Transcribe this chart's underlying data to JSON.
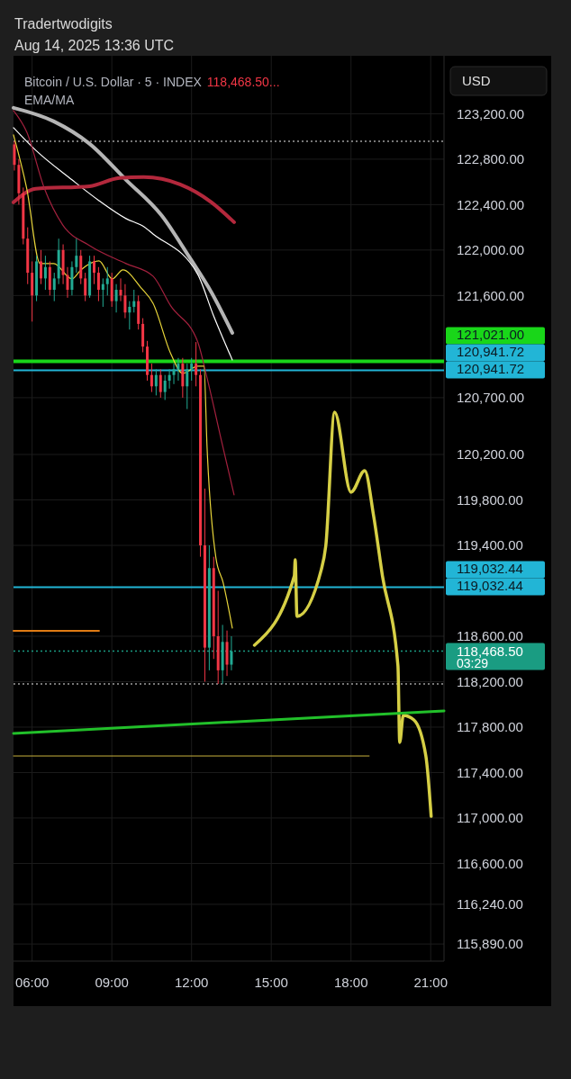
{
  "chart_data": {
    "type": "candlestick",
    "title": "Bitcoin / U.S. Dollar · 5 · INDEX",
    "subtitle": "EMA/MA",
    "annotations": [
      "Tradertwodigits",
      "Aug 14, 2025 13:36 UTC",
      "118,468.50...",
      "USD",
      "03:29",
      "120,941.72",
      "119,032.44"
    ],
    "x": [
      "2025-08-14T05:20",
      "2025-08-14T05:30",
      "2025-08-14T05:40",
      "2025-08-14T05:50",
      "2025-08-14T06:00",
      "2025-08-14T06:10",
      "2025-08-14T06:20",
      "2025-08-14T06:30",
      "2025-08-14T06:40",
      "2025-08-14T06:50",
      "2025-08-14T07:00",
      "2025-08-14T07:10",
      "2025-08-14T07:20",
      "2025-08-14T07:30",
      "2025-08-14T07:40",
      "2025-08-14T07:50",
      "2025-08-14T08:00",
      "2025-08-14T08:10",
      "2025-08-14T08:20",
      "2025-08-14T08:30",
      "2025-08-14T08:40",
      "2025-08-14T08:50",
      "2025-08-14T09:00",
      "2025-08-14T09:10",
      "2025-08-14T09:20",
      "2025-08-14T09:30",
      "2025-08-14T09:40",
      "2025-08-14T09:50",
      "2025-08-14T10:00",
      "2025-08-14T10:10",
      "2025-08-14T10:20",
      "2025-08-14T10:30",
      "2025-08-14T10:40",
      "2025-08-14T10:50",
      "2025-08-14T11:00",
      "2025-08-14T11:10",
      "2025-08-14T11:20",
      "2025-08-14T11:30",
      "2025-08-14T11:40",
      "2025-08-14T11:50",
      "2025-08-14T12:00",
      "2025-08-14T12:10",
      "2025-08-14T12:20",
      "2025-08-14T12:30",
      "2025-08-14T12:40",
      "2025-08-14T12:50",
      "2025-08-14T13:00",
      "2025-08-14T13:10",
      "2025-08-14T13:20",
      "2025-08-14T13:30"
    ],
    "ohlc": [
      [
        122930,
        122958,
        122700,
        122750
      ],
      [
        122750,
        122800,
        122400,
        122500
      ],
      [
        122500,
        122550,
        122050,
        122100
      ],
      [
        122100,
        122200,
        121700,
        121800
      ],
      [
        121800,
        121900,
        121370,
        121600
      ],
      [
        121600,
        121950,
        121550,
        121900
      ],
      [
        121900,
        122000,
        121700,
        121750
      ],
      [
        121750,
        121950,
        121650,
        121850
      ],
      [
        121850,
        121900,
        121600,
        121650
      ],
      [
        121650,
        121800,
        121550,
        121750
      ],
      [
        121750,
        122100,
        121700,
        122000
      ],
      [
        122000,
        122050,
        121700,
        121780
      ],
      [
        121780,
        121850,
        121580,
        121650
      ],
      [
        121650,
        121900,
        121600,
        121850
      ],
      [
        121850,
        122100,
        121800,
        121950
      ],
      [
        121950,
        122000,
        121700,
        121750
      ],
      [
        121750,
        121800,
        121550,
        121600
      ],
      [
        121600,
        121950,
        121580,
        121900
      ],
      [
        121900,
        121950,
        121700,
        121800
      ],
      [
        121800,
        121850,
        121550,
        121650
      ],
      [
        121650,
        121750,
        121500,
        121700
      ],
      [
        121700,
        121850,
        121600,
        121750
      ],
      [
        121750,
        121800,
        121500,
        121550
      ],
      [
        121550,
        121700,
        121450,
        121650
      ],
      [
        121650,
        121750,
        121550,
        121600
      ],
      [
        121600,
        121700,
        121400,
        121450
      ],
      [
        121450,
        121550,
        121300,
        121500
      ],
      [
        121500,
        121650,
        121450,
        121550
      ],
      [
        121550,
        121600,
        121300,
        121350
      ],
      [
        121350,
        121400,
        121100,
        121150
      ],
      [
        121150,
        121200,
        120850,
        120900
      ],
      [
        120900,
        121000,
        120750,
        120800
      ],
      [
        120800,
        120950,
        120720,
        120900
      ],
      [
        120900,
        120950,
        120700,
        120750
      ],
      [
        120750,
        120900,
        120680,
        120850
      ],
      [
        120850,
        120950,
        120780,
        120900
      ],
      [
        120900,
        121000,
        120820,
        120950
      ],
      [
        120950,
        121050,
        120850,
        121000
      ],
      [
        121000,
        121050,
        120700,
        120800
      ],
      [
        120800,
        121000,
        120600,
        120950
      ],
      [
        120950,
        121050,
        120850,
        121000
      ],
      [
        121000,
        121190,
        120800,
        120900
      ],
      [
        120900,
        120950,
        119300,
        119400
      ],
      [
        119400,
        119900,
        118200,
        118500
      ],
      [
        118500,
        119400,
        118300,
        119200
      ],
      [
        119200,
        119300,
        118400,
        118600
      ],
      [
        118600,
        119000,
        118180,
        118300
      ],
      [
        118300,
        118700,
        118180,
        118550
      ],
      [
        118550,
        118650,
        118250,
        118350
      ],
      [
        118350,
        118600,
        118300,
        118468.5
      ]
    ],
    "series": [
      {
        "type": "line",
        "color": "#b5b5b5",
        "x": [
          "2025-08-14T05:18",
          "2025-08-14T06:49",
          "2025-08-14T08:10",
          "2025-08-14T09:32",
          "2025-08-14T10:53",
          "2025-08-14T11:54",
          "2025-08-14T12:45",
          "2025-08-14T13:32"
        ],
        "values": [
          123252,
          123133,
          122935,
          122618,
          122301,
          121944,
          121627,
          121271
        ]
      },
      {
        "type": "line",
        "color": "#ffffff",
        "x": [
          "2025-08-14T05:18",
          "2025-08-14T06:08",
          "2025-08-14T07:30",
          "2025-08-14T08:31",
          "2025-08-14T09:32",
          "2025-08-14T10:12",
          "2025-08-14T10:33",
          "2025-08-14T12:14",
          "2025-08-14T12:49",
          "2025-08-14T13:32"
        ],
        "values": [
          123077,
          122879,
          122618,
          122435,
          122277,
          122206,
          122142,
          121786,
          121429,
          121033
        ]
      },
      {
        "type": "line",
        "color": "#b3283c",
        "x": [
          "2025-08-14T05:18",
          "2025-08-14T06:08",
          "2025-08-14T08:10",
          "2025-08-14T09:17",
          "2025-08-14T10:12",
          "2025-08-14T11:34",
          "2025-08-14T12:45",
          "2025-08-14T13:36"
        ],
        "values": [
          122420,
          122539,
          122562,
          122634,
          122642,
          122578,
          122420,
          122245
        ]
      },
      {
        "type": "line",
        "color": "#a3213e",
        "x": [
          "2025-08-14T05:18",
          "2025-08-14T05:48",
          "2025-08-14T06:28",
          "2025-08-14T07:09",
          "2025-08-14T08:10",
          "2025-08-14T09:32",
          "2025-08-14T10:33",
          "2025-08-14T11:13",
          "2025-08-14T12:14",
          "2025-08-14T12:35",
          "2025-08-14T13:09",
          "2025-08-14T13:36"
        ],
        "values": [
          123228,
          123038,
          122539,
          122222,
          122039,
          121881,
          121770,
          121508,
          121191,
          120874,
          120296,
          119844
        ]
      },
      {
        "type": "line",
        "color": "#e8d53a",
        "x": [
          "2025-08-14T05:18",
          "2025-08-14T05:48",
          "2025-08-14T06:18",
          "2025-08-14T06:49",
          "2025-08-14T07:30",
          "2025-08-14T07:50",
          "2025-08-14T08:31",
          "2025-08-14T09:01",
          "2025-08-14T09:25",
          "2025-08-14T10:06",
          "2025-08-14T10:33",
          "2025-08-14T11:13",
          "2025-08-14T11:40",
          "2025-08-14T12:14",
          "2025-08-14T12:28",
          "2025-08-14T12:35",
          "2025-08-14T12:55",
          "2025-08-14T13:11",
          "2025-08-14T13:32"
        ],
        "values": [
          123014,
          122539,
          121881,
          121881,
          121746,
          121825,
          121905,
          121746,
          121825,
          121667,
          121532,
          121088,
          120914,
          120977,
          120977,
          120264,
          119290,
          119076,
          118672
        ]
      },
      {
        "type": "line",
        "color": "#d6cf45",
        "x": [
          "2025-08-14T14:22",
          "2025-08-14T15:52",
          "2025-08-14T15:54",
          "2025-08-14T15:58",
          "2025-08-14T16:53",
          "2025-08-14T17:03",
          "2025-08-14T17:23",
          "2025-08-14T18:00",
          "2025-08-14T18:31",
          "2025-08-14T18:51",
          "2025-08-14T19:11",
          "2025-08-14T19:46",
          "2025-08-14T19:50",
          "2025-08-14T19:58",
          "2025-08-14T20:22",
          "2025-08-14T20:49",
          "2025-08-14T21:01"
        ],
        "values": [
          118521,
          119131,
          119274,
          118775,
          119187,
          119393,
          120573,
          119868,
          120058,
          119662,
          119131,
          118339,
          117665,
          117903,
          117863,
          117546,
          117015
        ]
      },
      {
        "type": "line",
        "color": "#22c02a",
        "x": [
          "2025-08-14T05:18",
          "2025-08-14T21:30"
        ],
        "values": [
          117745,
          117943
        ]
      },
      {
        "type": "line",
        "color": "#e07b14",
        "x": [
          "2025-08-14T05:18",
          "2025-08-14T08:31"
        ],
        "values": [
          118648,
          118648
        ]
      },
      {
        "type": "line",
        "color": "#c9b23c",
        "x": [
          "2025-08-14T05:18",
          "2025-08-14T18:41"
        ],
        "values": [
          117546,
          117546
        ]
      }
    ],
    "ref_lines": [
      {
        "axis": "y",
        "value": 121021,
        "label": "121,021.00",
        "color": "#19d619",
        "line_style": "solid"
      },
      {
        "axis": "y",
        "value": 120941.72,
        "label": "120,941.72",
        "color": "#22b5d6",
        "line_style": "solid"
      },
      {
        "axis": "y",
        "value": 119032.44,
        "label": "119,032.44",
        "color": "#22b5d6",
        "line_style": "solid"
      },
      {
        "axis": "y",
        "value": 118468.5,
        "label": "118,468.50",
        "color": "#1a9c82",
        "line_style": "dotted"
      },
      {
        "axis": "y",
        "value": 122958,
        "label": null,
        "color": "#9e9e9e",
        "line_style": "dotted"
      },
      {
        "axis": "y",
        "value": 118180,
        "label": null,
        "color": "#9e9e9e",
        "line_style": "dotted"
      }
    ],
    "xlim": [
      "2025-08-14T05:18",
      "2025-08-14T21:30"
    ],
    "xticks": [
      {
        "value": "2025-08-14T06:00",
        "label": "06:00"
      },
      {
        "value": "2025-08-14T09:00",
        "label": "09:00"
      },
      {
        "value": "2025-08-14T12:00",
        "label": "12:00"
      },
      {
        "value": "2025-08-14T15:00",
        "label": "15:00"
      },
      {
        "value": "2025-08-14T18:00",
        "label": "18:00"
      },
      {
        "value": "2025-08-14T21:00",
        "label": "21:00"
      }
    ],
    "ylim": [
      115740,
      123710
    ],
    "yticks": [
      {
        "value": 123200,
        "label": "123,200.00"
      },
      {
        "value": 122800,
        "label": "122,800.00"
      },
      {
        "value": 122400,
        "label": "122,400.00"
      },
      {
        "value": 122000,
        "label": "122,000.00"
      },
      {
        "value": 121600,
        "label": "121,600.00"
      },
      {
        "value": 120700,
        "label": "120,700.00"
      },
      {
        "value": 120200,
        "label": "120,200.00"
      },
      {
        "value": 119800,
        "label": "119,800.00"
      },
      {
        "value": 119400,
        "label": "119,400.00"
      },
      {
        "value": 118600,
        "label": "118,600.00"
      },
      {
        "value": 118200,
        "label": "118,200.00"
      },
      {
        "value": 117800,
        "label": "117,800.00"
      },
      {
        "value": 117400,
        "label": "117,400.00"
      },
      {
        "value": 117000,
        "label": "117,000.00"
      },
      {
        "value": 116600,
        "label": "116,600.00"
      },
      {
        "value": 116240,
        "label": "116,240.00"
      },
      {
        "value": 115890,
        "label": "115,890.00"
      }
    ],
    "grid": true
  }
}
